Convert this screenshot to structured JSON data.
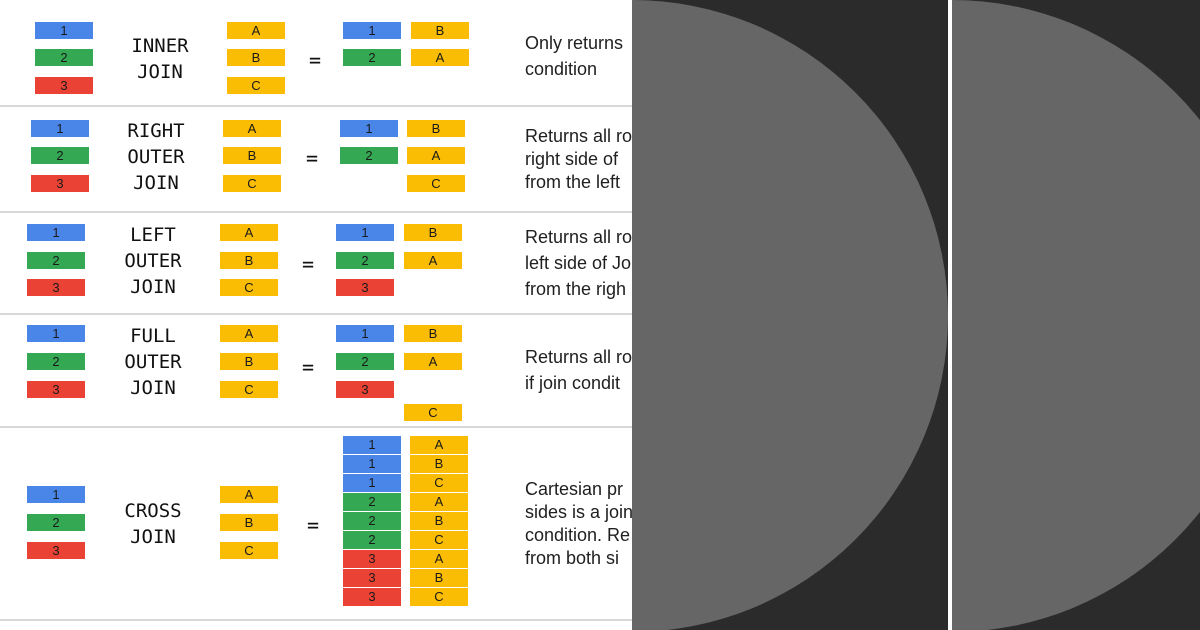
{
  "colors": {
    "one": "#4a86e8",
    "two": "#34a853",
    "three": "#ea4335",
    "yellow": "#fbbc04"
  },
  "rows": [
    {
      "label": [
        "INNER",
        "JOIN"
      ],
      "left": [
        "1",
        "2",
        "3"
      ],
      "right": [
        "A",
        "B",
        "C"
      ],
      "equals": "=",
      "result": [
        [
          "1",
          "B"
        ],
        [
          "2",
          "A"
        ]
      ],
      "description": [
        "Only returns",
        "condition"
      ]
    },
    {
      "label": [
        "RIGHT",
        "OUTER",
        "JOIN"
      ],
      "left": [
        "1",
        "2",
        "3"
      ],
      "right": [
        "A",
        "B",
        "C"
      ],
      "equals": "=",
      "result": [
        [
          "1",
          "B"
        ],
        [
          "2",
          "A"
        ],
        [
          "",
          "C"
        ]
      ],
      "description": [
        "Returns all ro",
        "right side of",
        "from the left"
      ]
    },
    {
      "label": [
        "LEFT",
        "OUTER",
        "JOIN"
      ],
      "left": [
        "1",
        "2",
        "3"
      ],
      "right": [
        "A",
        "B",
        "C"
      ],
      "equals": "=",
      "result": [
        [
          "1",
          "B"
        ],
        [
          "2",
          "A"
        ],
        [
          "3",
          ""
        ]
      ],
      "description": [
        "Returns all ro",
        "left side of Jo",
        "from the righ"
      ]
    },
    {
      "label": [
        "FULL",
        "OUTER",
        "JOIN"
      ],
      "left": [
        "1",
        "2",
        "3"
      ],
      "right": [
        "A",
        "B",
        "C"
      ],
      "equals": "=",
      "result": [
        [
          "1",
          "B"
        ],
        [
          "2",
          "A"
        ],
        [
          "3",
          ""
        ],
        [
          "",
          "C"
        ]
      ],
      "description": [
        "Returns all ro",
        "if join condit"
      ]
    },
    {
      "label": [
        "CROSS",
        "JOIN"
      ],
      "left": [
        "1",
        "2",
        "3"
      ],
      "right": [
        "A",
        "B",
        "C"
      ],
      "equals": "=",
      "result": [
        [
          "1",
          "A"
        ],
        [
          "1",
          "B"
        ],
        [
          "1",
          "C"
        ],
        [
          "2",
          "A"
        ],
        [
          "2",
          "B"
        ],
        [
          "2",
          "C"
        ],
        [
          "3",
          "A"
        ],
        [
          "3",
          "B"
        ],
        [
          "3",
          "C"
        ]
      ],
      "description": [
        "Cartesian pr",
        "sides is a join",
        "condition. Re",
        "from both si"
      ]
    }
  ]
}
